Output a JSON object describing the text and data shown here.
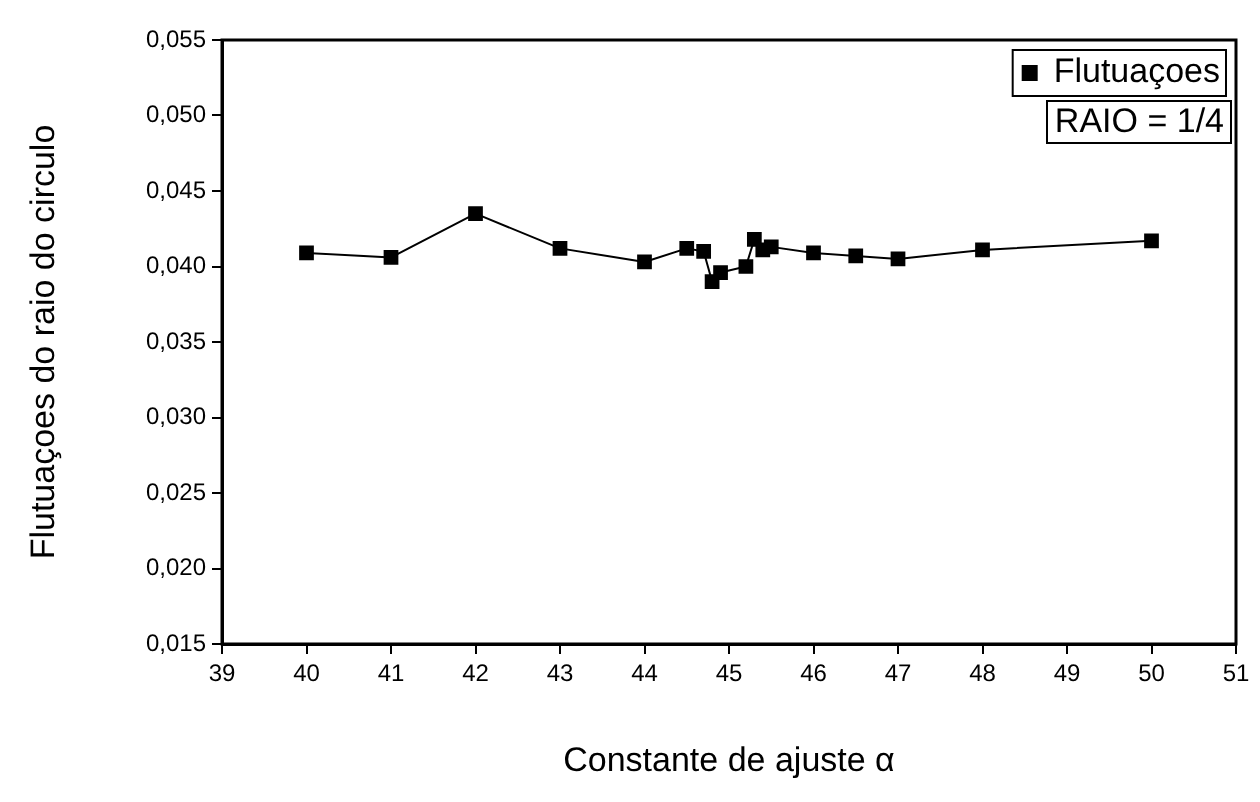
{
  "chart_data": {
    "type": "line",
    "xlabel": "Constante de ajuste α",
    "ylabel": "Flutuaçoes do raio do circulo",
    "x": [
      40,
      41,
      42,
      43,
      44,
      44.5,
      44.7,
      44.8,
      44.9,
      45.2,
      45.3,
      45.4,
      45.5,
      46,
      46.5,
      47,
      48,
      50
    ],
    "series": [
      {
        "name": "Flutuaçoes",
        "color": "#000000",
        "values": [
          0.0409,
          0.0406,
          0.0435,
          0.0412,
          0.0403,
          0.0412,
          0.041,
          0.039,
          0.0396,
          0.04,
          0.0418,
          0.0411,
          0.0413,
          0.0409,
          0.0407,
          0.0405,
          0.0411,
          0.0417
        ]
      }
    ],
    "xlim": [
      39,
      51
    ],
    "xticks": [
      39,
      40,
      41,
      42,
      43,
      44,
      45,
      46,
      47,
      48,
      49,
      50,
      51
    ],
    "ylim": [
      0.015,
      0.055
    ],
    "yticks": [
      {
        "value": 0.015,
        "label": "0,015"
      },
      {
        "value": 0.02,
        "label": "0,020"
      },
      {
        "value": 0.025,
        "label": "0,025"
      },
      {
        "value": 0.03,
        "label": "0,030"
      },
      {
        "value": 0.035,
        "label": "0,035"
      },
      {
        "value": 0.04,
        "label": "0,040"
      },
      {
        "value": 0.045,
        "label": "0,045"
      },
      {
        "value": 0.05,
        "label": "0,050"
      },
      {
        "value": 0.055,
        "label": "0,055"
      }
    ],
    "annotations": [
      "RAIO = 1/4"
    ],
    "legend": "top right",
    "marker": "square",
    "line_style": "solid",
    "grid": false
  }
}
